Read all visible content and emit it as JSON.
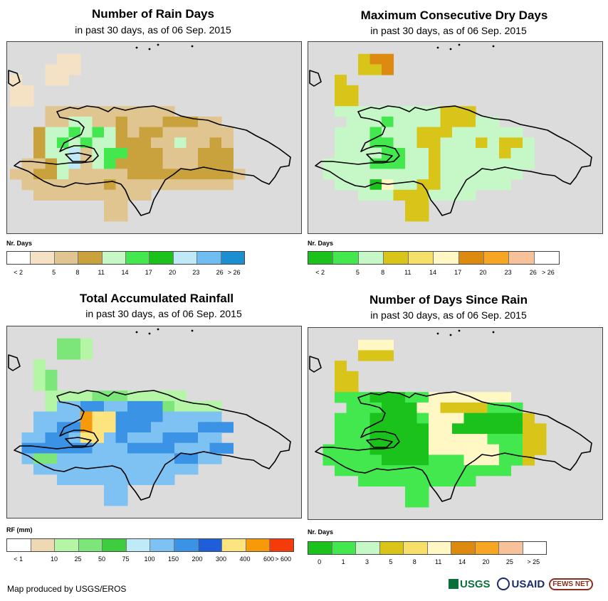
{
  "panels": [
    {
      "title": "Number of Rain Days",
      "subtitle": "in past 30 days, as of 06 Sep. 2015",
      "legend_unit": "Nr. Days",
      "legend_colors": [
        "#ffffff",
        "#f5e2c4",
        "#e0c590",
        "#c9a23e",
        "#c6f7c6",
        "#43e84e",
        "#1cc21c",
        "#bfe9f7",
        "#6fbdf2",
        "#1c8fd0"
      ],
      "legend_ticks": [
        "< 2",
        "5",
        "8",
        "11",
        "14",
        "17",
        "20",
        "23",
        "26",
        "> 26"
      ],
      "tick_mode": "boundary"
    },
    {
      "title": "Maximum Consecutive Dry Days",
      "subtitle": "in past 30 days, as of 06 Sep. 2015",
      "legend_unit": "Nr. Days",
      "legend_colors": [
        "#1cc21c",
        "#43e84e",
        "#c6f7c6",
        "#d9c51a",
        "#f7e06a",
        "#fff8c4",
        "#dd8a10",
        "#f7a623",
        "#f7c29a",
        "#ffffff"
      ],
      "legend_ticks": [
        "< 2",
        "5",
        "8",
        "11",
        "14",
        "17",
        "20",
        "23",
        "26",
        "> 26"
      ],
      "tick_mode": "boundary"
    },
    {
      "title": "Total Accumulated Rainfall",
      "subtitle": "in past 30 days, as of 06 Sep. 2015",
      "legend_unit": "RF (mm)",
      "legend_colors": [
        "#ffffff",
        "#efd9b4",
        "#b4f5a6",
        "#7de67a",
        "#3fcc3f",
        "#bfeaf7",
        "#7dc2f2",
        "#3b93e6",
        "#1f5ed9",
        "#fde47f",
        "#f79a0a",
        "#f53b0a"
      ],
      "legend_ticks": [
        "< 1",
        "10",
        "25",
        "50",
        "75",
        "100",
        "150",
        "200",
        "300",
        "400",
        "600",
        "> 600"
      ],
      "tick_mode": "boundary"
    },
    {
      "title": "Number of Days Since Rain",
      "subtitle": "in past 30 days, as of 06 Sep. 2015",
      "legend_unit": "Nr. Days",
      "legend_colors": [
        "#1cc21c",
        "#43e84e",
        "#c6f7c6",
        "#d9c51a",
        "#f7e06a",
        "#fff8c4",
        "#dd8a10",
        "#f7a623",
        "#f7c29a",
        "#ffffff"
      ],
      "legend_ticks": [
        "0",
        "1",
        "3",
        "5",
        "8",
        "11",
        "14",
        "20",
        "25",
        "> 25"
      ],
      "tick_mode": "center"
    }
  ],
  "footer": {
    "credit": "Map produced by USGS/EROS"
  },
  "logos": {
    "usgs": "USGS",
    "usaid": "USAID",
    "fews": "FEWS NET"
  },
  "grids": [
    [
      "....................",
      "....aa..............",
      "...aaa..............",
      "a..aa...............",
      "aa..................",
      "aa..................",
      "...bbbbbbbbbbb......",
      "...bbggbbcbbbcccbb..",
      "..cggGgGgcbccbbbbbb.",
      "..cgGgGggcccbbgbbcb.",
      "..cgglbgGGcccbbbccc.",
      ".bbcglbgGccccbbbccc.",
      "bbccgbbbbbcccccccccb",
      ".bbbbbbbcbbbbbbbbbb.",
      "..bbbbbbbbbb........",
      "........bb..........",
      "........bb..........",
      "....................",
      "...................."
    ],
    [
      "....................",
      "....ctt.............",
      "....cct.............",
      "..c.................",
      "..cc................",
      "..cc................",
      "..gggggggggccc......",
      "...gggGggggcccgg....",
      "..gggGgggcccgggggg..",
      "..gggGGggccgggcgccg.",
      "..ggggGGggcgggggcgg.",
      ".ggggGGGggcgggggggg.",
      ".gggggggggcggggggg..",
      "..gggdeggccgggggg...",
      "....gggcccgggg......",
      "........cc..........",
      "........cc..........",
      "....................",
      "...................."
    ],
    [
      "....................",
      "....GGg.............",
      "....GGg.............",
      "..g.................",
      "..gG................",
      "..gG................",
      "...ggggGGGggggg.....",
      "...gppuuppuuuGgggg..",
      "..ppppoyyuuuuppppp..",
      "..ppuuoyyuuuppppuuu.",
      ".ppuupyypupppuuupp..",
      ".uuuuuupppuuuupppuu.",
      ".pGGppppppppppuupp..",
      "..pppppppppppppp....",
      "....pppppppppp......",
      "........pp..........",
      "........pp..........",
      "....................",
      "...................."
    ],
    [
      "....................",
      "....ccc.............",
      "....yyy.............",
      "..y.................",
      "..yy................",
      "..yy................",
      "..gggGGGggccccccc...",
      "...gggGGGccyyyyggg..",
      "..gggGGGGgcccGGGGGy.",
      "..gggGGGGGccGGGGGGyy",
      "..gggGGGGGcccccgggyy",
      ".ggggGGGGGccccccggyy",
      ".gggggGGGGgggcccggy.",
      "..ggggggggggggggg...",
      "....gggggggggg......",
      "........gg..........",
      "........gg..........",
      "....................",
      "...................."
    ]
  ],
  "palettes": [
    {
      "a": "#f5e2c4",
      "b": "#e0c590",
      "c": "#c9a23e",
      "g": "#c6f7c6",
      "G": "#43e84e",
      "l": "#bfe9f7"
    },
    {
      "c": "#d9c51a",
      "t": "#dd8a10",
      "g": "#c6f7c6",
      "G": "#43e84e",
      "d": "#1cc21c",
      "e": "#fff8c4"
    },
    {
      "g": "#b4f5a6",
      "G": "#7de67a",
      "p": "#7dc2f2",
      "u": "#3b93e6",
      "o": "#f79a0a",
      "y": "#fde47f"
    },
    {
      "c": "#fff8c4",
      "y": "#d9c51a",
      "g": "#43e84e",
      "G": "#1cc21c"
    }
  ]
}
